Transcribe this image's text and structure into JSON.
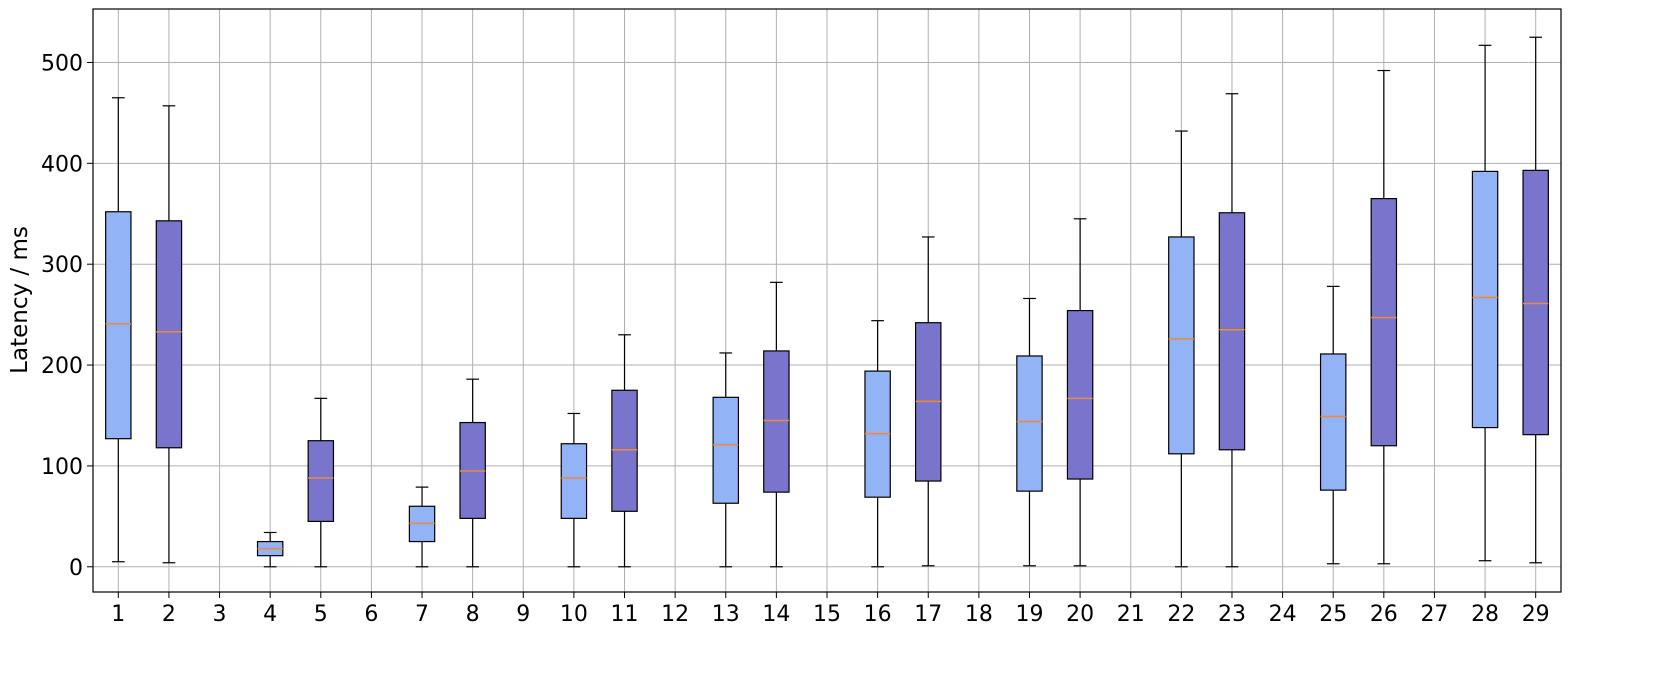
{
  "chart_data": {
    "type": "box",
    "title": "",
    "xlabel": "",
    "ylabel": "Latency / ms",
    "ylim": [
      -25,
      553
    ],
    "yticks": [
      0,
      100,
      200,
      300,
      400,
      500
    ],
    "grid": true,
    "categories": [
      "1",
      "2",
      "3",
      "4",
      "5",
      "6",
      "7",
      "8",
      "9",
      "10",
      "11",
      "12",
      "13",
      "14",
      "15",
      "16",
      "17",
      "18",
      "19",
      "20",
      "21",
      "22",
      "23",
      "24",
      "25",
      "26",
      "27",
      "28",
      "29"
    ],
    "colors": {
      "light": "#92b3f5",
      "dark": "#7975cd",
      "median": "#f0883a",
      "grid": "#b0b0b0"
    },
    "boxes": [
      {
        "x": "1",
        "color": "light",
        "whisker_low": 5,
        "q1": 127,
        "median": 241,
        "q3": 352,
        "whisker_high": 465
      },
      {
        "x": "2",
        "color": "dark",
        "whisker_low": 4,
        "q1": 118,
        "median": 233,
        "q3": 343,
        "whisker_high": 457
      },
      {
        "x": "4",
        "color": "light",
        "whisker_low": 0,
        "q1": 11,
        "median": 18,
        "q3": 25,
        "whisker_high": 34
      },
      {
        "x": "5",
        "color": "dark",
        "whisker_low": 0,
        "q1": 45,
        "median": 88,
        "q3": 125,
        "whisker_high": 167
      },
      {
        "x": "7",
        "color": "light",
        "whisker_low": 0,
        "q1": 25,
        "median": 43,
        "q3": 60,
        "whisker_high": 79
      },
      {
        "x": "8",
        "color": "dark",
        "whisker_low": 0,
        "q1": 48,
        "median": 95,
        "q3": 143,
        "whisker_high": 186
      },
      {
        "x": "10",
        "color": "light",
        "whisker_low": 0,
        "q1": 48,
        "median": 88,
        "q3": 122,
        "whisker_high": 152
      },
      {
        "x": "11",
        "color": "dark",
        "whisker_low": 0,
        "q1": 55,
        "median": 116,
        "q3": 175,
        "whisker_high": 230
      },
      {
        "x": "13",
        "color": "light",
        "whisker_low": 0,
        "q1": 63,
        "median": 121,
        "q3": 168,
        "whisker_high": 212
      },
      {
        "x": "14",
        "color": "dark",
        "whisker_low": 0,
        "q1": 74,
        "median": 145,
        "q3": 214,
        "whisker_high": 282
      },
      {
        "x": "16",
        "color": "light",
        "whisker_low": 0,
        "q1": 69,
        "median": 132,
        "q3": 194,
        "whisker_high": 244
      },
      {
        "x": "17",
        "color": "dark",
        "whisker_low": 1,
        "q1": 85,
        "median": 164,
        "q3": 242,
        "whisker_high": 327
      },
      {
        "x": "19",
        "color": "light",
        "whisker_low": 1,
        "q1": 75,
        "median": 144,
        "q3": 209,
        "whisker_high": 266
      },
      {
        "x": "20",
        "color": "dark",
        "whisker_low": 1,
        "q1": 87,
        "median": 167,
        "q3": 254,
        "whisker_high": 345
      },
      {
        "x": "22",
        "color": "light",
        "whisker_low": 0,
        "q1": 112,
        "median": 226,
        "q3": 327,
        "whisker_high": 432
      },
      {
        "x": "23",
        "color": "dark",
        "whisker_low": 0,
        "q1": 116,
        "median": 235,
        "q3": 351,
        "whisker_high": 469
      },
      {
        "x": "25",
        "color": "light",
        "whisker_low": 3,
        "q1": 76,
        "median": 149,
        "q3": 211,
        "whisker_high": 278
      },
      {
        "x": "26",
        "color": "dark",
        "whisker_low": 3,
        "q1": 120,
        "median": 247,
        "q3": 365,
        "whisker_high": 492
      },
      {
        "x": "28",
        "color": "light",
        "whisker_low": 6,
        "q1": 138,
        "median": 267,
        "q3": 392,
        "whisker_high": 517
      },
      {
        "x": "29",
        "color": "dark",
        "whisker_low": 4,
        "q1": 131,
        "median": 261,
        "q3": 393,
        "whisker_high": 525
      }
    ]
  }
}
